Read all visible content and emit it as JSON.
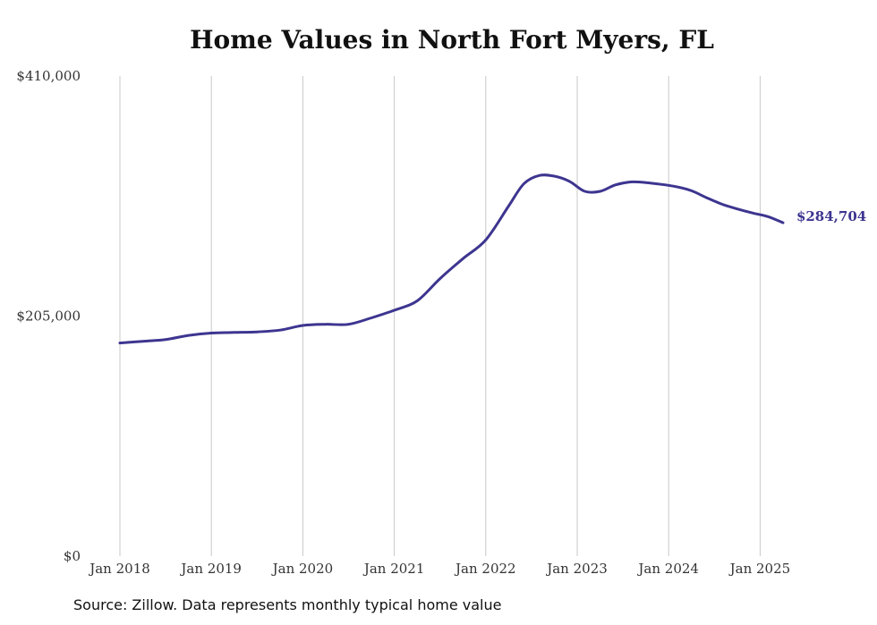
{
  "chart_data": {
    "type": "line",
    "title": "Home Values in North Fort Myers, FL",
    "xlabel": "",
    "ylabel": "",
    "ylim": [
      0,
      410000
    ],
    "xlim": [
      "2018-01",
      "2025-04"
    ],
    "x_ticks": [
      "Jan 2018",
      "Jan 2019",
      "Jan 2020",
      "Jan 2021",
      "Jan 2022",
      "Jan 2023",
      "Jan 2024",
      "Jan 2025"
    ],
    "y_ticks": [
      "$0",
      "$205,000",
      "$410,000"
    ],
    "y_tick_values": [
      0,
      205000,
      410000
    ],
    "grid": "vertical",
    "line_color": "#3d3590",
    "end_label": "$284,704",
    "series": [
      {
        "x": [
          "2018-01",
          "2018-04",
          "2018-07",
          "2018-10",
          "2019-01",
          "2019-04",
          "2019-07",
          "2019-10",
          "2020-01",
          "2020-04",
          "2020-07",
          "2020-10",
          "2021-01",
          "2021-04",
          "2021-07",
          "2021-10",
          "2022-01",
          "2022-04",
          "2022-06",
          "2022-08",
          "2022-10",
          "2022-12",
          "2023-02",
          "2023-04",
          "2023-06",
          "2023-08",
          "2023-10",
          "2023-12",
          "2024-02",
          "2024-04",
          "2024-06",
          "2024-08",
          "2024-10",
          "2024-12",
          "2025-02",
          "2025-04"
        ],
        "values": [
          182000,
          183500,
          185000,
          188500,
          190500,
          191000,
          191500,
          193000,
          197000,
          198000,
          198000,
          203500,
          210000,
          218000,
          237000,
          254000,
          270000,
          299000,
          318000,
          325000,
          324500,
          320000,
          311500,
          311500,
          317000,
          319500,
          319000,
          317500,
          315500,
          312000,
          306000,
          300500,
          296500,
          293000,
          290000,
          284704
        ]
      }
    ]
  },
  "source": "Source: Zillow. Data represents monthly typical home value"
}
